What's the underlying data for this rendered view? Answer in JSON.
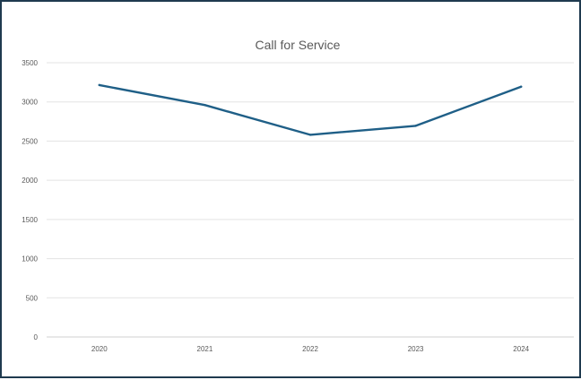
{
  "chart_data": {
    "type": "line",
    "title": "Call for Service",
    "xlabel": "",
    "ylabel": "",
    "categories": [
      "2020",
      "2021",
      "2022",
      "2023",
      "2024"
    ],
    "series": [
      {
        "values": [
          3215,
          2960,
          2580,
          2695,
          3195
        ],
        "color": "#1f5f87"
      }
    ],
    "ylim": [
      0,
      3500
    ],
    "yticks": [
      0,
      500,
      1000,
      1500,
      2000,
      2500,
      3000,
      3500
    ],
    "grid": true,
    "legend": "none"
  }
}
